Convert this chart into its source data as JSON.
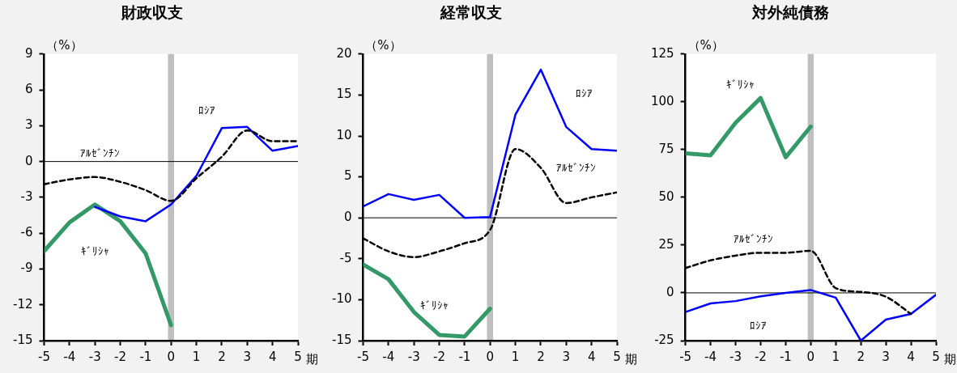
{
  "chart_data": [
    {
      "type": "line",
      "title": "財政収支",
      "ylabel": "（%）",
      "xlabel": "期",
      "x": [
        -5,
        -4,
        -3,
        -2,
        -1,
        0,
        1,
        2,
        3,
        4,
        5
      ],
      "xlim": [
        -5,
        5
      ],
      "xticks": [
        -5,
        -4,
        -3,
        -2,
        -1,
        0,
        1,
        2,
        3,
        4,
        5
      ],
      "ylim": [
        -15,
        9
      ],
      "yticks": [
        -15,
        -12,
        -9,
        -6,
        -3,
        0,
        3,
        6,
        9
      ],
      "grid": false,
      "legend": false,
      "marker": "none",
      "bands": [
        {
          "axis": "x",
          "from": -0.12,
          "to": 0.12,
          "color": "#bfbfbf"
        }
      ],
      "ref_lines": [
        {
          "axis": "y",
          "value": 0,
          "color": "#000000"
        }
      ],
      "series": [
        {
          "name": "ｷﾞﾘｼｬ",
          "color": "#339966",
          "values": [
            -7.5,
            -5.1,
            -3.6,
            -5.0,
            -7.7,
            -13.7,
            null,
            null,
            null,
            null,
            null
          ]
        },
        {
          "name": "ﾛｼｱ",
          "color": "#0000ff",
          "values": [
            null,
            null,
            -3.8,
            -4.6,
            -5.0,
            -3.6,
            -1.2,
            2.8,
            2.9,
            0.9,
            1.3
          ]
        },
        {
          "name": "ｱﾙｾﾞﾝﾁﾝ",
          "color": "#000000",
          "line_style": "dashed",
          "values": [
            -1.9,
            -1.5,
            -1.3,
            -1.7,
            -2.4,
            -3.3,
            -1.4,
            0.4,
            2.6,
            1.7,
            1.7
          ]
        }
      ]
    },
    {
      "type": "line",
      "title": "経常収支",
      "ylabel": "（%）",
      "xlabel": "期",
      "x": [
        -5,
        -4,
        -3,
        -2,
        -1,
        0,
        1,
        2,
        3,
        4,
        5
      ],
      "xlim": [
        -5,
        5
      ],
      "xticks": [
        -5,
        -4,
        -3,
        -2,
        -1,
        0,
        1,
        2,
        3,
        4,
        5
      ],
      "ylim": [
        -15,
        20
      ],
      "yticks": [
        -15,
        -10,
        -5,
        0,
        5,
        10,
        15,
        20
      ],
      "grid": false,
      "legend": false,
      "marker": "none",
      "bands": [
        {
          "axis": "x",
          "from": -0.12,
          "to": 0.12,
          "color": "#bfbfbf"
        }
      ],
      "ref_lines": [
        {
          "axis": "y",
          "value": 0,
          "color": "#000000"
        }
      ],
      "series": [
        {
          "name": "ｷﾞﾘｼｬ",
          "color": "#339966",
          "values": [
            -5.7,
            -7.5,
            -11.5,
            -14.3,
            -14.5,
            -11.1,
            null,
            null,
            null,
            null,
            null
          ]
        },
        {
          "name": "ﾛｼｱ",
          "color": "#0000ff",
          "values": [
            1.4,
            2.9,
            2.2,
            2.8,
            0,
            0.1,
            12.6,
            18.1,
            11.1,
            8.4,
            8.2
          ]
        },
        {
          "name": "ｱﾙｾﾞﾝﾁﾝ",
          "color": "#000000",
          "line_style": "dashed",
          "values": [
            -2.5,
            -4.1,
            -4.8,
            -4.1,
            -3.1,
            -1.5,
            8.4,
            6.1,
            1.8,
            2.5,
            3.1
          ]
        }
      ]
    },
    {
      "type": "line",
      "title": "対外純債務",
      "ylabel": "（%）",
      "xlabel": "期",
      "x": [
        -5,
        -4,
        -3,
        -2,
        -1,
        0,
        1,
        2,
        3,
        4,
        5
      ],
      "xlim": [
        -5,
        5
      ],
      "xticks": [
        -5,
        -4,
        -3,
        -2,
        -1,
        0,
        1,
        2,
        3,
        4,
        5
      ],
      "ylim": [
        -25,
        125
      ],
      "yticks": [
        -25,
        0,
        25,
        50,
        75,
        100,
        125
      ],
      "grid": false,
      "legend": false,
      "marker": "none",
      "bands": [
        {
          "axis": "x",
          "from": -0.12,
          "to": 0.12,
          "color": "#bfbfbf"
        }
      ],
      "ref_lines": [
        {
          "axis": "y",
          "value": 0,
          "color": "#000000"
        }
      ],
      "series": [
        {
          "name": "ｷﾞﾘｼｬ",
          "color": "#339966",
          "values": [
            73,
            72,
            89,
            102,
            71,
            87,
            null,
            null,
            null,
            null,
            null
          ]
        },
        {
          "name": "ﾛｼｱ",
          "color": "#0000ff",
          "values": [
            -10,
            -5.5,
            -4.3,
            -1.8,
            0,
            1.5,
            -2.5,
            -25,
            -14,
            -11,
            -1
          ]
        },
        {
          "name": "ｱﾙｾﾞﾝﾁﾝ",
          "color": "#000000",
          "line_style": "dashed",
          "values": [
            13,
            17,
            19.5,
            21,
            21,
            22,
            2.5,
            0.5,
            -2,
            -11,
            null
          ]
        }
      ]
    }
  ]
}
